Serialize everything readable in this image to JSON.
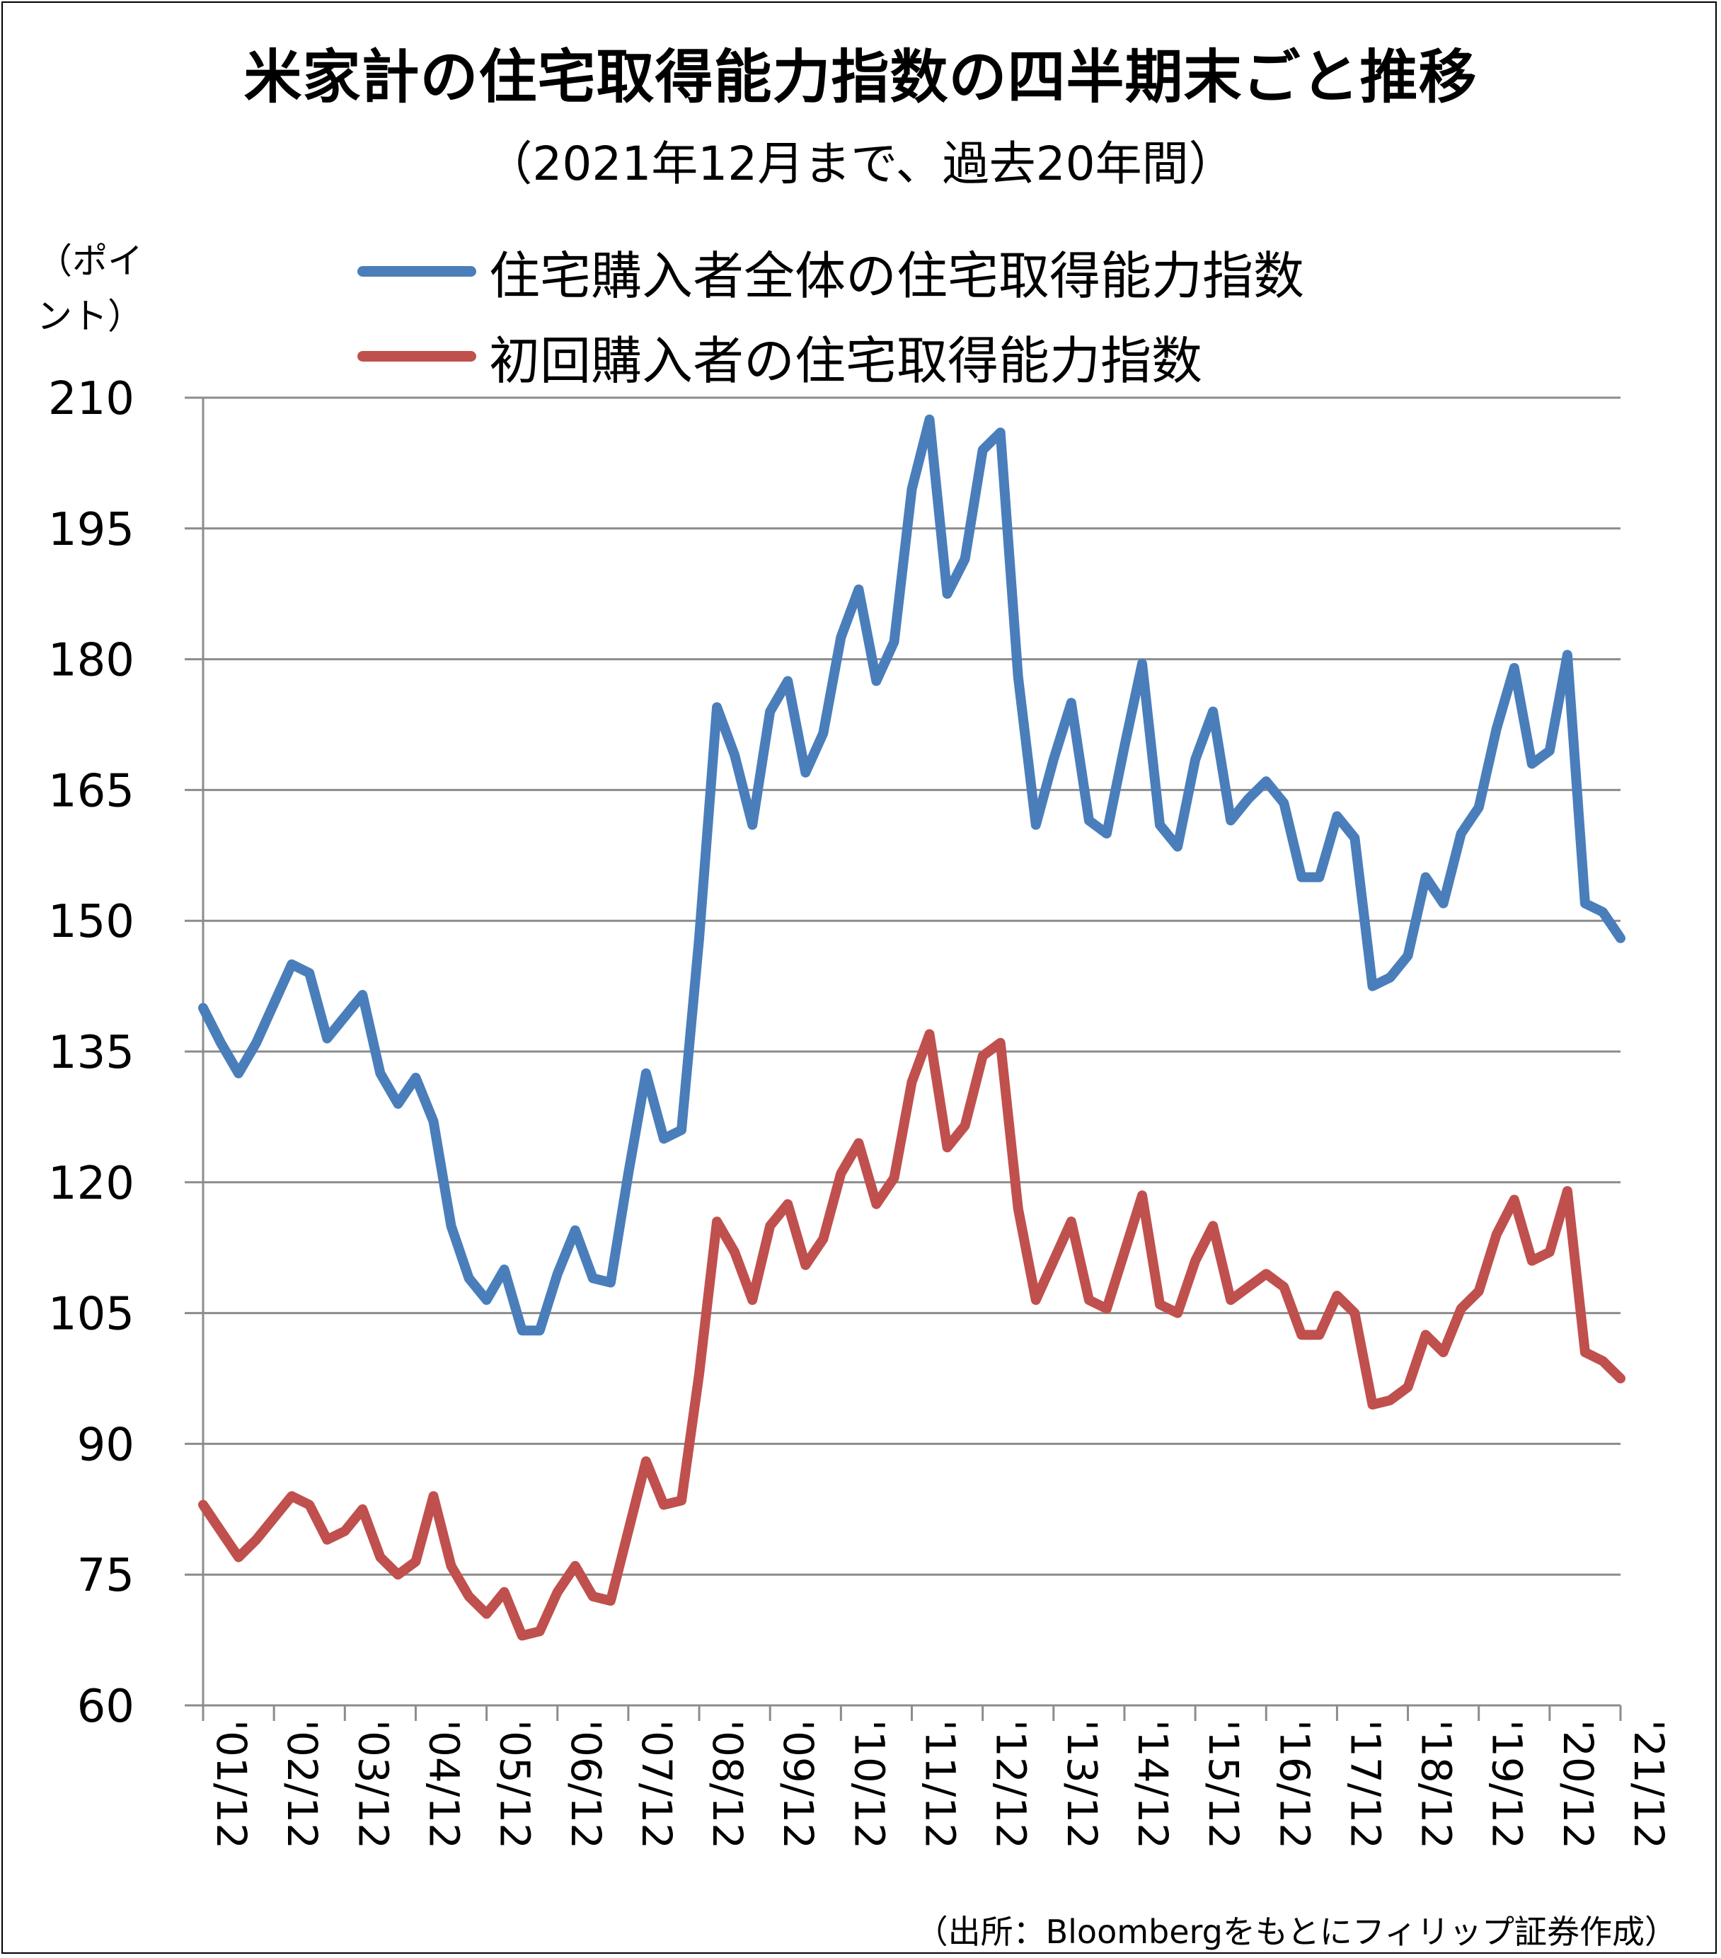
{
  "chart_data": {
    "type": "line",
    "title": "米家計の住宅取得能力指数の四半期末ごと推移",
    "subtitle": "（2021年12月まで、過去20年間）",
    "ylabel": "（ポイント）",
    "ylabel_lines": [
      "（ポイ",
      "ント）"
    ],
    "ylim": [
      60,
      210
    ],
    "yticks": [
      "210",
      "195",
      "180",
      "165",
      "150",
      "135",
      "120",
      "105",
      "90",
      "75",
      "60"
    ],
    "xticks": [
      "'01/12",
      "'02/12",
      "'03/12",
      "'04/12",
      "'05/12",
      "'06/12",
      "'07/12",
      "'08/12",
      "'09/12",
      "'10/12",
      "'11/12",
      "'12/12",
      "'13/12",
      "'14/12",
      "'15/12",
      "'16/12",
      "'17/12",
      "'18/12",
      "'19/12",
      "'20/12",
      "'21/12"
    ],
    "grid": true,
    "legend_position": "top",
    "x_start": "2001-12",
    "x_step": "quarter",
    "series": [
      {
        "name": "住宅購入者全体の住宅取得能力指数",
        "color": "#4a7ebb",
        "values": [
          140,
          136,
          132.5,
          136,
          140.5,
          145,
          144,
          136.5,
          139,
          141.5,
          132.5,
          129,
          132,
          127,
          115,
          109,
          106.5,
          110,
          103,
          103,
          109.5,
          114.5,
          109,
          108.5,
          121,
          132.5,
          125,
          126,
          148,
          174.5,
          169,
          161,
          174,
          177.5,
          167,
          171.5,
          182.5,
          188,
          177.5,
          182,
          199.5,
          207.5,
          187.5,
          191.5,
          204,
          206,
          178,
          161,
          168.5,
          175,
          161.5,
          160,
          170,
          179.5,
          161,
          158.5,
          168.5,
          174,
          161.5,
          164,
          166,
          163.5,
          155,
          155,
          162,
          159.5,
          142.5,
          143.5,
          146,
          155,
          152,
          160,
          163,
          172,
          179,
          168,
          169.5,
          180.5,
          152,
          151,
          148
        ]
      },
      {
        "name": "初回購入者の住宅取得能力指数",
        "color": "#c0504d",
        "values": [
          83,
          80,
          77,
          79,
          81.5,
          84,
          83,
          79,
          80,
          82.5,
          77,
          75,
          76.5,
          84,
          76,
          72.5,
          70.5,
          73,
          68,
          68.5,
          73,
          76,
          72.5,
          72,
          80,
          88,
          83,
          83.5,
          98,
          115.5,
          112,
          106.5,
          115,
          117.5,
          110.5,
          113.5,
          121,
          124.5,
          117.5,
          120.5,
          131.5,
          137,
          124,
          126.5,
          134.5,
          136,
          117,
          106.5,
          111,
          115.5,
          106.5,
          105.5,
          112,
          118.5,
          106,
          105,
          111,
          115,
          106.5,
          108,
          109.5,
          108,
          102.5,
          102.5,
          107,
          105,
          94.5,
          95,
          96.5,
          102.5,
          100.5,
          105.5,
          107.5,
          114,
          118,
          111,
          112,
          119,
          100.5,
          99.5,
          97.5
        ]
      }
    ]
  },
  "source_note": "（出所：Bloombergをもとにフィリップ証券作成）"
}
